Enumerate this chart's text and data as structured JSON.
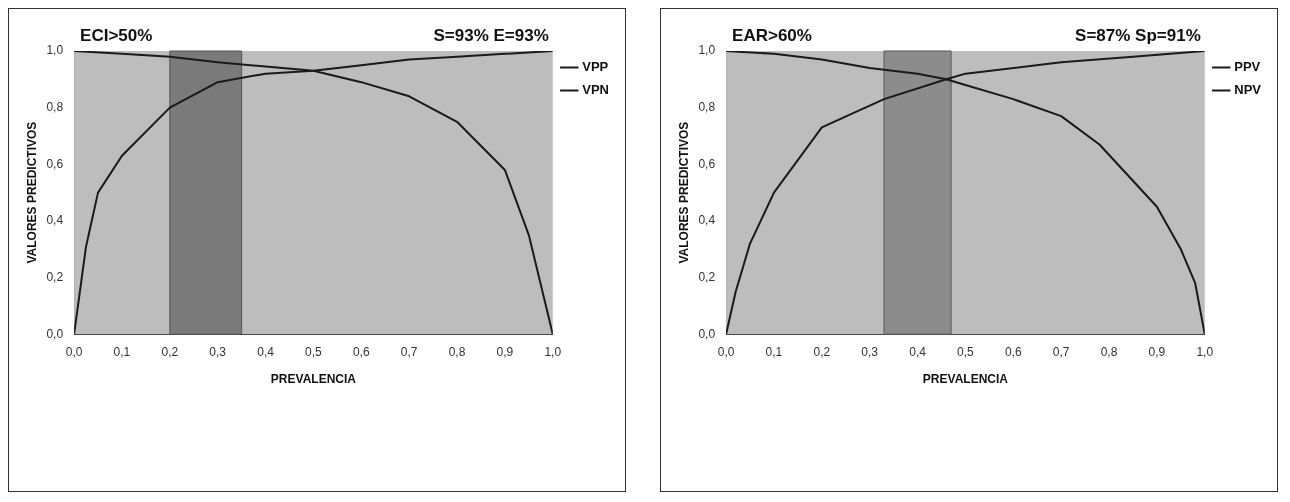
{
  "chart_data": [
    {
      "type": "line",
      "title": "ECI>50%",
      "subtitle": "S=93% E=93%",
      "xlabel": "PREVALENCIA",
      "ylabel": "VALORES PREDICTIVOS",
      "xlim": [
        0,
        1
      ],
      "ylim": [
        0,
        1
      ],
      "xticks": [
        {
          "value": 0,
          "label": "0,0"
        },
        {
          "value": 0.1,
          "label": "0,1"
        },
        {
          "value": 0.2,
          "label": "0,2"
        },
        {
          "value": 0.3,
          "label": "0,3"
        },
        {
          "value": 0.4,
          "label": "0,4"
        },
        {
          "value": 0.5,
          "label": "0,5"
        },
        {
          "value": 0.6,
          "label": "0,6"
        },
        {
          "value": 0.7,
          "label": "0,7"
        },
        {
          "value": 0.8,
          "label": "0,8"
        },
        {
          "value": 0.9,
          "label": "0,9"
        },
        {
          "value": 1,
          "label": "1,0"
        }
      ],
      "yticks": [
        {
          "value": 0,
          "label": "0,0"
        },
        {
          "value": 0.2,
          "label": "0,2"
        },
        {
          "value": 0.4,
          "label": "0,4"
        },
        {
          "value": 0.6,
          "label": "0,6"
        },
        {
          "value": 0.8,
          "label": "0,8"
        },
        {
          "value": 1,
          "label": "1,0"
        }
      ],
      "grid": false,
      "legend": "top right",
      "marker": "none",
      "bands": [
        {
          "axis": "x",
          "from": 0.2,
          "to": 0.35,
          "color": "#7a7a7a"
        }
      ],
      "series": [
        {
          "name": "VPP",
          "color": "#1a1a1a",
          "x": [
            0,
            0.025,
            0.05,
            0.1,
            0.2,
            0.3,
            0.4,
            0.5,
            0.6,
            0.7,
            0.8,
            0.9,
            1
          ],
          "values": [
            0,
            0.31,
            0.5,
            0.63,
            0.8,
            0.89,
            0.92,
            0.93,
            0.95,
            0.97,
            0.98,
            0.99,
            1
          ]
        },
        {
          "name": "VPN",
          "color": "#1a1a1a",
          "x": [
            0,
            0.1,
            0.2,
            0.3,
            0.4,
            0.5,
            0.6,
            0.7,
            0.8,
            0.9,
            0.95,
            1
          ],
          "values": [
            1,
            0.99,
            0.98,
            0.96,
            0.945,
            0.93,
            0.89,
            0.84,
            0.75,
            0.58,
            0.35,
            0
          ]
        }
      ]
    },
    {
      "type": "line",
      "title": "EAR>60%",
      "subtitle": "S=87% Sp=91%",
      "xlabel": "PREVALENCIA",
      "ylabel": "VALORES PREDICTIVOS",
      "xlim": [
        0,
        1
      ],
      "ylim": [
        0,
        1
      ],
      "xticks": [
        {
          "value": 0,
          "label": "0,0"
        },
        {
          "value": 0.1,
          "label": "0,1"
        },
        {
          "value": 0.2,
          "label": "0,2"
        },
        {
          "value": 0.3,
          "label": "0,3"
        },
        {
          "value": 0.4,
          "label": "0,4"
        },
        {
          "value": 0.5,
          "label": "0,5"
        },
        {
          "value": 0.6,
          "label": "0,6"
        },
        {
          "value": 0.7,
          "label": "0,7"
        },
        {
          "value": 0.8,
          "label": "0,8"
        },
        {
          "value": 0.9,
          "label": "0,9"
        },
        {
          "value": 1,
          "label": "1,0"
        }
      ],
      "yticks": [
        {
          "value": 0,
          "label": "0,0"
        },
        {
          "value": 0.2,
          "label": "0,2"
        },
        {
          "value": 0.4,
          "label": "0,4"
        },
        {
          "value": 0.6,
          "label": "0,6"
        },
        {
          "value": 0.8,
          "label": "0,8"
        },
        {
          "value": 1,
          "label": "1,0"
        }
      ],
      "grid": false,
      "legend": "top right",
      "marker": "none",
      "bands": [
        {
          "axis": "x",
          "from": 0.33,
          "to": 0.47,
          "color": "#8c8c8c"
        }
      ],
      "series": [
        {
          "name": "PPV",
          "color": "#1a1a1a",
          "x": [
            0,
            0.02,
            0.05,
            0.1,
            0.2,
            0.33,
            0.46,
            0.5,
            0.7,
            0.85,
            1
          ],
          "values": [
            0,
            0.15,
            0.32,
            0.5,
            0.73,
            0.83,
            0.9,
            0.92,
            0.96,
            0.98,
            1
          ]
        },
        {
          "name": "NPV",
          "color": "#1a1a1a",
          "x": [
            0,
            0.1,
            0.2,
            0.3,
            0.4,
            0.46,
            0.5,
            0.6,
            0.7,
            0.78,
            0.9,
            0.95,
            0.98,
            1
          ],
          "values": [
            1,
            0.99,
            0.97,
            0.94,
            0.92,
            0.9,
            0.88,
            0.83,
            0.77,
            0.67,
            0.45,
            0.3,
            0.18,
            0
          ]
        }
      ]
    }
  ]
}
